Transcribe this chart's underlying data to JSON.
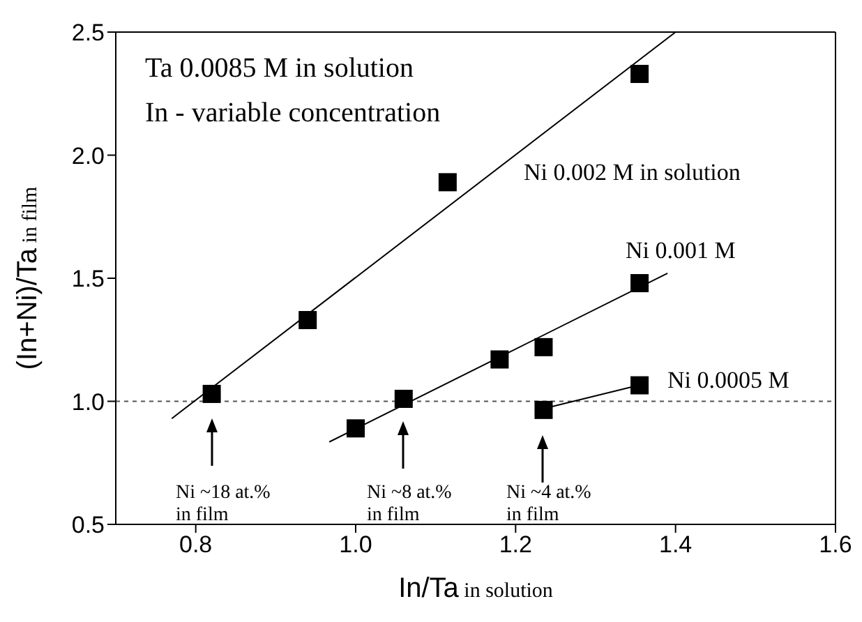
{
  "chart_data": {
    "type": "scatter",
    "xlabel": "In/Ta  in solution",
    "ylabel": "(In+Ni)/Ta  in film",
    "xlim": [
      0.7,
      1.6
    ],
    "xticks": [
      0.8,
      {
        "value": 1,
        "label": "1.0"
      },
      1.2,
      1.4,
      1.6
    ],
    "ylim": [
      0.5,
      2.5
    ],
    "yticks": [
      0.5,
      {
        "value": 1,
        "label": "1.0"
      },
      1.5,
      {
        "value": 2,
        "label": "2.0"
      },
      2.5
    ],
    "marker": "square",
    "series": [
      {
        "type": "scatter",
        "name": "Ni 0.002 M in solution",
        "color": "#000000",
        "x": [
          0.82,
          0.94,
          1.115,
          1.355
        ],
        "values": [
          1.03,
          1.33,
          1.89,
          2.33
        ]
      },
      {
        "type": "line",
        "color": "#000000",
        "line_style": "solid",
        "marker": "none",
        "x": [
          0.77,
          1.4
        ],
        "values": [
          0.93,
          2.5
        ]
      },
      {
        "type": "scatter",
        "name": "Ni 0.001 M",
        "color": "#000000",
        "x": [
          1.0,
          1.06,
          1.18,
          1.235,
          1.355
        ],
        "values": [
          0.89,
          1.01,
          1.17,
          1.22,
          1.48
        ]
      },
      {
        "type": "line",
        "color": "#000000",
        "line_style": "solid",
        "marker": "none",
        "x": [
          0.967,
          1.39
        ],
        "values": [
          0.835,
          1.52
        ]
      },
      {
        "type": "scatter",
        "name": "Ni 0.0005 M",
        "color": "#000000",
        "x": [
          1.235,
          1.355
        ],
        "values": [
          0.965,
          1.065
        ]
      },
      {
        "type": "line",
        "color": "#000000",
        "line_style": "solid",
        "marker": "none",
        "x": [
          1.235,
          1.36
        ],
        "values": [
          0.97,
          1.07
        ]
      }
    ],
    "ref_lines": [
      {
        "axis": "y",
        "value": 1.0,
        "color": "#555555",
        "line_style": "dashed"
      }
    ],
    "annotations": [
      "Ta 0.0085 M  in solution",
      "In - variable concentration",
      "Ni ~18 at.%\nin film",
      "Ni ~8 at.%\nin film",
      "Ni ~4 at.%\nin film"
    ]
  }
}
